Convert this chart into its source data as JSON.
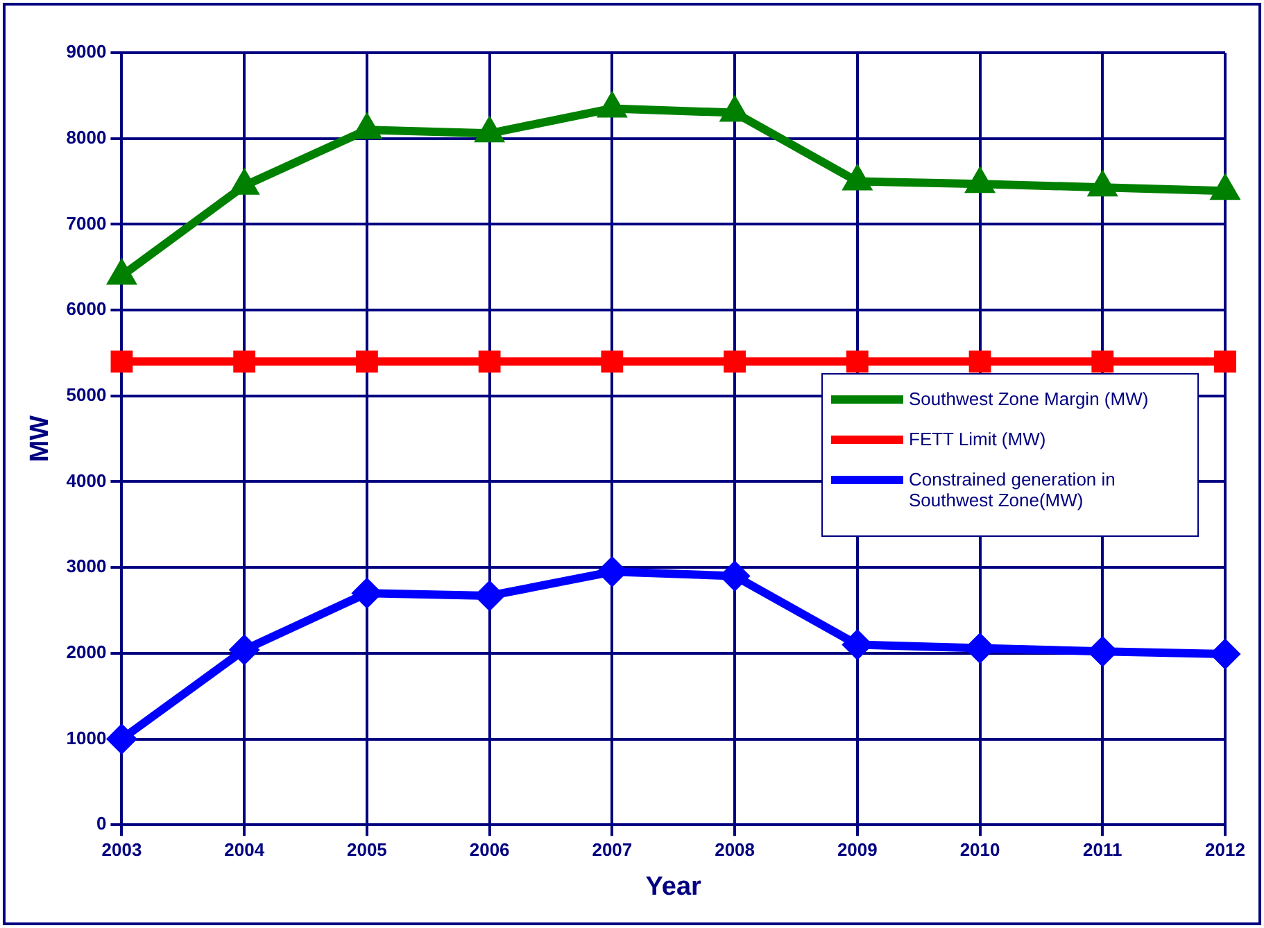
{
  "chart_data": {
    "type": "line",
    "xlabel": "Year",
    "ylabel": "MW",
    "categories": [
      "2003",
      "2004",
      "2005",
      "2006",
      "2007",
      "2008",
      "2009",
      "2010",
      "2011",
      "2012"
    ],
    "ylim": [
      0,
      9000
    ],
    "yticks": [
      0,
      1000,
      2000,
      3000,
      4000,
      5000,
      6000,
      7000,
      8000,
      9000
    ],
    "grid": true,
    "legend": "right",
    "series": [
      {
        "name": "Southwest Zone Margin (MW)",
        "color": "#008000",
        "marker": "triangle",
        "values": [
          6400,
          7450,
          8100,
          8060,
          8350,
          8300,
          7500,
          7470,
          7430,
          7390
        ]
      },
      {
        "name": "FETT Limit (MW)",
        "color": "#ff0000",
        "marker": "square",
        "values": [
          5400,
          5400,
          5400,
          5400,
          5400,
          5400,
          5400,
          5400,
          5400,
          5400
        ]
      },
      {
        "name": "Constrained generation in Southwest Zone(MW)",
        "color": "#0000ff",
        "marker": "diamond",
        "values": [
          1000,
          2040,
          2700,
          2670,
          2950,
          2900,
          2100,
          2060,
          2020,
          1990
        ]
      }
    ]
  }
}
